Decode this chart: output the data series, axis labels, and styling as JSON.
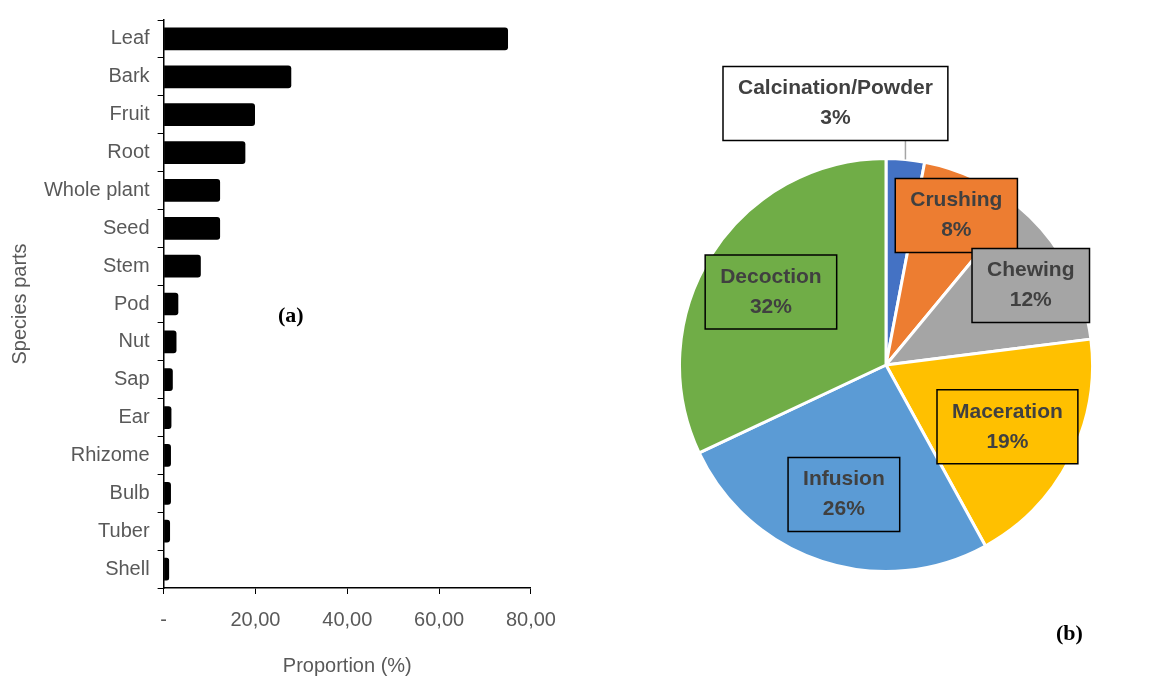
{
  "chart_data": [
    {
      "type": "bar",
      "orientation": "horizontal",
      "xlabel": "Proportion (%)",
      "ylabel": "Species parts",
      "categories": [
        "Leaf",
        "Bark",
        "Fruit",
        "Root",
        "Whole plant",
        "Seed",
        "Stem",
        "Pod",
        "Nut",
        "Sap",
        "Ear",
        "Rhizome",
        "Bulb",
        "Tuber",
        "Shell"
      ],
      "values": [
        75,
        27.8,
        19.9,
        17.8,
        12.3,
        12.3,
        8.1,
        3.2,
        2.8,
        2,
        1.7,
        1.6,
        1.6,
        1.4,
        1.2
      ],
      "color": "#000000",
      "xlim": [
        0,
        80
      ],
      "xticks": [
        {
          "value": 0,
          "label": "-"
        },
        {
          "value": 20,
          "label": "20,00"
        },
        {
          "value": 40,
          "label": "40,00"
        },
        {
          "value": 60,
          "label": "60,00"
        },
        {
          "value": 80,
          "label": "80,00"
        }
      ],
      "grid": false,
      "legend": false,
      "annotations": [
        "(a)"
      ]
    },
    {
      "type": "pie",
      "categories": [
        "Calcination/Powder",
        "Crushing",
        "Chewing",
        "Maceration",
        "Infusion",
        "Decoction"
      ],
      "values": [
        3,
        8,
        12,
        19,
        26,
        32
      ],
      "colors": [
        "#4472c4",
        "#ed7d31",
        "#a5a5a5",
        "#ffc000",
        "#5b9bd5",
        "#70ad47"
      ],
      "value_labels": [
        "3%",
        "8%",
        "12%",
        "19%",
        "26%",
        "32%"
      ],
      "legend": false,
      "annotations": [
        "(b)"
      ]
    }
  ]
}
